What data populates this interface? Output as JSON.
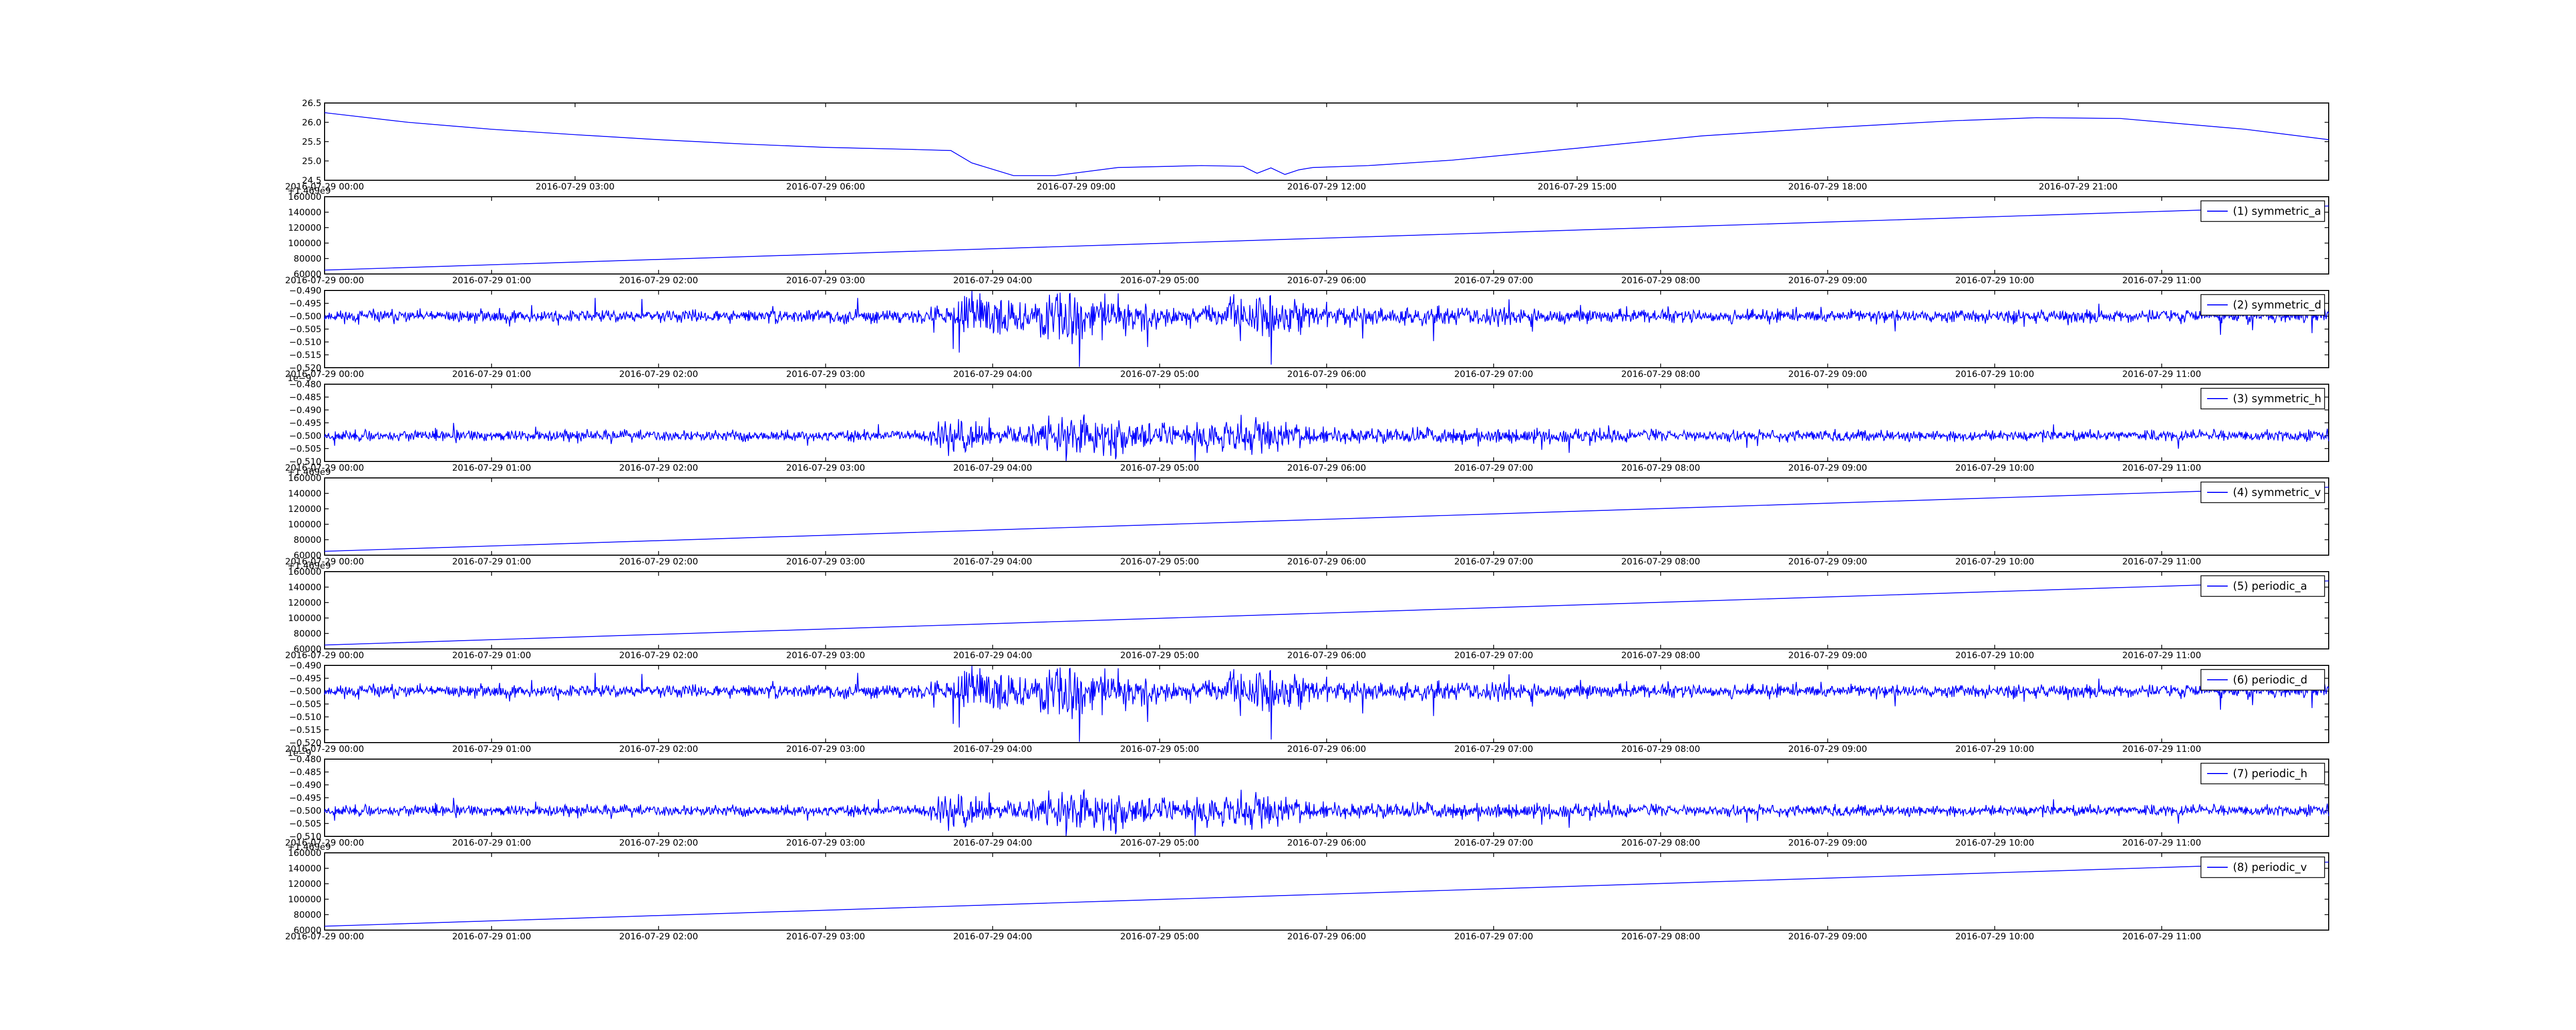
{
  "chart_data": [
    {
      "type": "line",
      "title": "",
      "xlabel": "",
      "ylabel": "",
      "legend": "",
      "xlim": [
        "2016-07-29 00:00",
        "2016-07-30 00:00"
      ],
      "ylim": [
        24.5,
        26.5
      ],
      "y_ticks": [
        "24.5",
        "25.0",
        "25.5",
        "26.0",
        "26.5"
      ],
      "x_ticks": [
        "2016-07-29 00:00",
        "2016-07-29 03:00",
        "2016-07-29 06:00",
        "2016-07-29 09:00",
        "2016-07-29 12:00",
        "2016-07-29 15:00",
        "2016-07-29 18:00",
        "2016-07-29 21:00"
      ],
      "series": [
        {
          "name": "",
          "kind": "smooth",
          "x": [
            "2016-07-29 00:00",
            "2016-07-29 01:00",
            "2016-07-29 02:00",
            "2016-07-29 03:00",
            "2016-07-29 04:00",
            "2016-07-29 05:00",
            "2016-07-29 06:00",
            "2016-07-29 07:00",
            "2016-07-29 07:30",
            "2016-07-29 07:45",
            "2016-07-29 08:15",
            "2016-07-29 08:45",
            "2016-07-29 09:30",
            "2016-07-29 10:30",
            "2016-07-29 11:00",
            "2016-07-29 11:10",
            "2016-07-29 11:20",
            "2016-07-29 11:30",
            "2016-07-29 11:40",
            "2016-07-29 11:50",
            "2016-07-29 12:30",
            "2016-07-29 13:30",
            "2016-07-29 15:00",
            "2016-07-29 16:30",
            "2016-07-29 18:00",
            "2016-07-29 19:30",
            "2016-07-29 20:30",
            "2016-07-29 21:30",
            "2016-07-29 23:00",
            "2016-07-30 00:00"
          ],
          "y": [
            26.25,
            26.0,
            25.82,
            25.68,
            25.55,
            25.44,
            25.35,
            25.3,
            25.27,
            24.95,
            24.62,
            24.62,
            24.83,
            24.88,
            24.86,
            24.68,
            24.82,
            24.65,
            24.77,
            24.83,
            24.88,
            25.02,
            25.33,
            25.65,
            25.86,
            26.04,
            26.12,
            26.1,
            25.82,
            25.55
          ]
        }
      ]
    },
    {
      "type": "line",
      "ylim": [
        60000,
        160000
      ],
      "y_offset": "+1.469e9",
      "y_ticks": [
        "60000",
        "80000",
        "100000",
        "120000",
        "140000",
        "160000"
      ],
      "xlim": [
        "2016-07-29 00:00",
        "2016-07-29 12:00"
      ],
      "x_ticks": [
        "2016-07-29 00:00",
        "2016-07-29 01:00",
        "2016-07-29 02:00",
        "2016-07-29 03:00",
        "2016-07-29 04:00",
        "2016-07-29 05:00",
        "2016-07-29 06:00",
        "2016-07-29 07:00",
        "2016-07-29 08:00",
        "2016-07-29 09:00",
        "2016-07-29 10:00",
        "2016-07-29 11:00"
      ],
      "series": [
        {
          "name": "(1) symmetric_a",
          "kind": "linear",
          "x": [
            "2016-07-29 00:00",
            "2016-07-29 12:00"
          ],
          "y": [
            65000,
            148000
          ]
        }
      ]
    },
    {
      "type": "line",
      "ylim": [
        -0.52,
        -0.49
      ],
      "y_ticks": [
        "−0.520",
        "−0.515",
        "−0.510",
        "−0.505",
        "−0.500",
        "−0.495",
        "−0.490"
      ],
      "xlim": [
        "2016-07-29 00:00",
        "2016-07-29 12:00"
      ],
      "x_ticks": [
        "2016-07-29 00:00",
        "2016-07-29 01:00",
        "2016-07-29 02:00",
        "2016-07-29 03:00",
        "2016-07-29 04:00",
        "2016-07-29 05:00",
        "2016-07-29 06:00",
        "2016-07-29 07:00",
        "2016-07-29 08:00",
        "2016-07-29 09:00",
        "2016-07-29 10:00",
        "2016-07-29 11:00"
      ],
      "series": [
        {
          "name": "(2) symmetric_d",
          "kind": "noise",
          "baseline": -0.5,
          "amplitude": 0.0025,
          "burst_profile": "d",
          "seed": 11
        }
      ]
    },
    {
      "type": "line",
      "ylim": [
        -0.51,
        -0.48
      ],
      "y_offset": "1e−9",
      "y_ticks": [
        "−0.510",
        "−0.505",
        "−0.500",
        "−0.495",
        "−0.490",
        "−0.485",
        "−0.480"
      ],
      "xlim": [
        "2016-07-29 00:00",
        "2016-07-29 12:00"
      ],
      "x_ticks": [
        "2016-07-29 00:00",
        "2016-07-29 01:00",
        "2016-07-29 02:00",
        "2016-07-29 03:00",
        "2016-07-29 04:00",
        "2016-07-29 05:00",
        "2016-07-29 06:00",
        "2016-07-29 07:00",
        "2016-07-29 08:00",
        "2016-07-29 09:00",
        "2016-07-29 10:00",
        "2016-07-29 11:00"
      ],
      "series": [
        {
          "name": "(3) symmetric_h",
          "kind": "noise",
          "baseline": -0.5,
          "amplitude": 0.0022,
          "burst_profile": "h",
          "seed": 23
        }
      ]
    },
    {
      "type": "line",
      "ylim": [
        60000,
        160000
      ],
      "y_offset": "+1.469e9",
      "y_ticks": [
        "60000",
        "80000",
        "100000",
        "120000",
        "140000",
        "160000"
      ],
      "xlim": [
        "2016-07-29 00:00",
        "2016-07-29 12:00"
      ],
      "x_ticks": [
        "2016-07-29 00:00",
        "2016-07-29 01:00",
        "2016-07-29 02:00",
        "2016-07-29 03:00",
        "2016-07-29 04:00",
        "2016-07-29 05:00",
        "2016-07-29 06:00",
        "2016-07-29 07:00",
        "2016-07-29 08:00",
        "2016-07-29 09:00",
        "2016-07-29 10:00",
        "2016-07-29 11:00"
      ],
      "series": [
        {
          "name": "(4) symmetric_v",
          "kind": "linear",
          "x": [
            "2016-07-29 00:00",
            "2016-07-29 12:00"
          ],
          "y": [
            65000,
            148000
          ]
        }
      ]
    },
    {
      "type": "line",
      "ylim": [
        60000,
        160000
      ],
      "y_offset": "+1.469e9",
      "y_ticks": [
        "60000",
        "80000",
        "100000",
        "120000",
        "140000",
        "160000"
      ],
      "xlim": [
        "2016-07-29 00:00",
        "2016-07-29 12:00"
      ],
      "x_ticks": [
        "2016-07-29 00:00",
        "2016-07-29 01:00",
        "2016-07-29 02:00",
        "2016-07-29 03:00",
        "2016-07-29 04:00",
        "2016-07-29 05:00",
        "2016-07-29 06:00",
        "2016-07-29 07:00",
        "2016-07-29 08:00",
        "2016-07-29 09:00",
        "2016-07-29 10:00",
        "2016-07-29 11:00"
      ],
      "series": [
        {
          "name": "(5) periodic_a",
          "kind": "linear",
          "x": [
            "2016-07-29 00:00",
            "2016-07-29 12:00"
          ],
          "y": [
            65000,
            148000
          ]
        }
      ]
    },
    {
      "type": "line",
      "ylim": [
        -0.52,
        -0.49
      ],
      "y_ticks": [
        "−0.520",
        "−0.515",
        "−0.510",
        "−0.505",
        "−0.500",
        "−0.495",
        "−0.490"
      ],
      "xlim": [
        "2016-07-29 00:00",
        "2016-07-29 12:00"
      ],
      "x_ticks": [
        "2016-07-29 00:00",
        "2016-07-29 01:00",
        "2016-07-29 02:00",
        "2016-07-29 03:00",
        "2016-07-29 04:00",
        "2016-07-29 05:00",
        "2016-07-29 06:00",
        "2016-07-29 07:00",
        "2016-07-29 08:00",
        "2016-07-29 09:00",
        "2016-07-29 10:00",
        "2016-07-29 11:00"
      ],
      "series": [
        {
          "name": "(6) periodic_d",
          "kind": "noise",
          "baseline": -0.5,
          "amplitude": 0.0025,
          "burst_profile": "d",
          "seed": 11
        }
      ]
    },
    {
      "type": "line",
      "ylim": [
        -0.51,
        -0.48
      ],
      "y_offset": "1e−9",
      "y_ticks": [
        "−0.510",
        "−0.505",
        "−0.500",
        "−0.495",
        "−0.490",
        "−0.485",
        "−0.480"
      ],
      "xlim": [
        "2016-07-29 00:00",
        "2016-07-29 12:00"
      ],
      "x_ticks": [
        "2016-07-29 00:00",
        "2016-07-29 01:00",
        "2016-07-29 02:00",
        "2016-07-29 03:00",
        "2016-07-29 04:00",
        "2016-07-29 05:00",
        "2016-07-29 06:00",
        "2016-07-29 07:00",
        "2016-07-29 08:00",
        "2016-07-29 09:00",
        "2016-07-29 10:00",
        "2016-07-29 11:00"
      ],
      "series": [
        {
          "name": "(7) periodic_h",
          "kind": "noise",
          "baseline": -0.5,
          "amplitude": 0.0022,
          "burst_profile": "h",
          "seed": 23
        }
      ]
    },
    {
      "type": "line",
      "ylim": [
        60000,
        160000
      ],
      "y_offset": "+1.469e9",
      "y_ticks": [
        "60000",
        "80000",
        "100000",
        "120000",
        "140000",
        "160000"
      ],
      "xlim": [
        "2016-07-29 00:00",
        "2016-07-29 12:00"
      ],
      "x_ticks": [
        "2016-07-29 00:00",
        "2016-07-29 01:00",
        "2016-07-29 02:00",
        "2016-07-29 03:00",
        "2016-07-29 04:00",
        "2016-07-29 05:00",
        "2016-07-29 06:00",
        "2016-07-29 07:00",
        "2016-07-29 08:00",
        "2016-07-29 09:00",
        "2016-07-29 10:00",
        "2016-07-29 11:00"
      ],
      "series": [
        {
          "name": "(8) periodic_v",
          "kind": "linear",
          "x": [
            "2016-07-29 00:00",
            "2016-07-29 12:00"
          ],
          "y": [
            65000,
            148000
          ]
        }
      ]
    }
  ],
  "colors": {
    "line": "#0000ff",
    "frame": "#000000",
    "background": "#ffffff"
  }
}
